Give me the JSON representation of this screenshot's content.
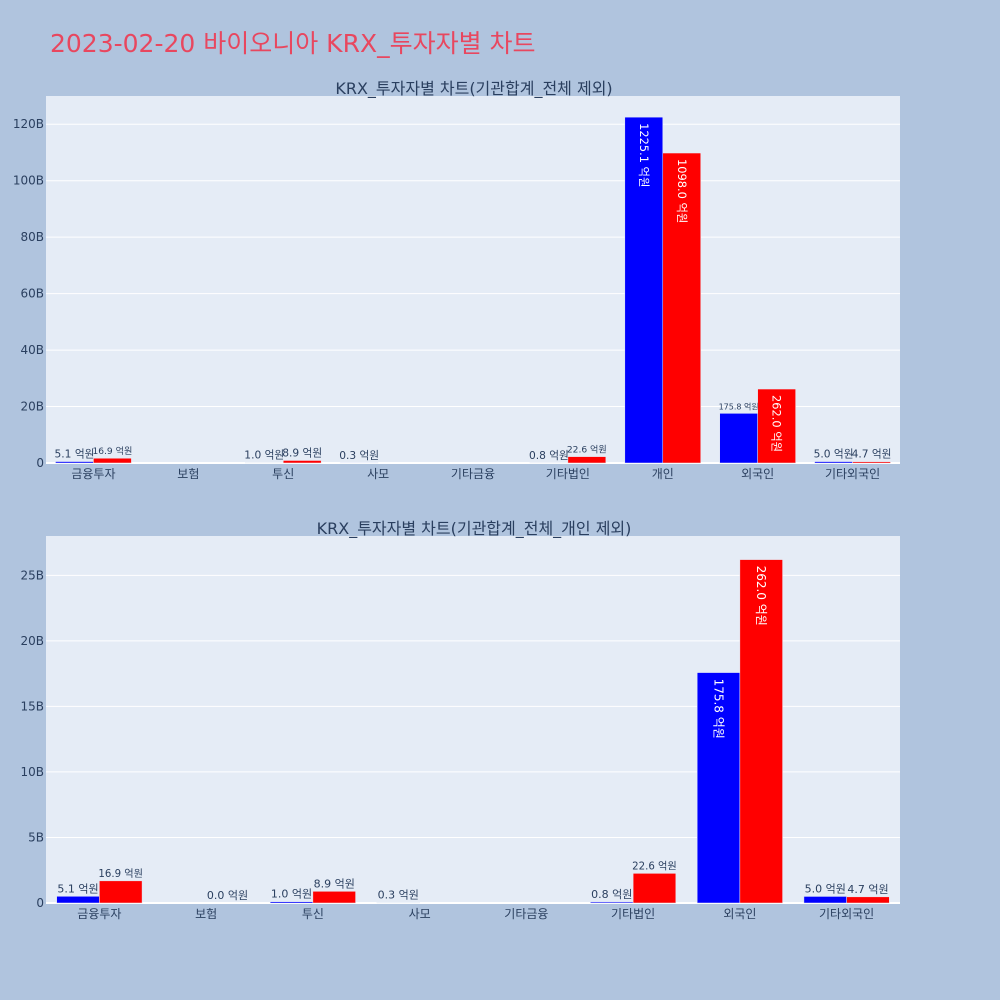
{
  "page": {
    "title": "2023-02-20 바이오니아 KRX_투자자별 차트"
  },
  "colors": {
    "background": "#b0c4de",
    "plot_bg": "#e5ecf6",
    "title": "#e8475f",
    "text": "#2a3f5f",
    "buy": "#0000ff",
    "sell": "#ff0000"
  },
  "chart_data": [
    {
      "type": "bar",
      "title": "KRX_투자자별 차트(기관합계_전체 제외)",
      "categories": [
        "금융투자",
        "보험",
        "투신",
        "사모",
        "기타금융",
        "기타법인",
        "개인",
        "외국인",
        "기타외국인"
      ],
      "series": [
        {
          "color": "#0000ff",
          "values": [
            510000000,
            0,
            100000000,
            30000000,
            0,
            80000000,
            122510000000,
            17580000000,
            500000000
          ],
          "labels": [
            "5.1 억원",
            "",
            "1.0 억원",
            "0.3 억원",
            "",
            "0.8 억원",
            "1225.1 억원",
            "175.8 억원",
            "5.0 억원"
          ]
        },
        {
          "color": "#ff0000",
          "values": [
            1690000000,
            0,
            890000000,
            0,
            0,
            2260000000,
            109800000000,
            26200000000,
            470000000
          ],
          "labels": [
            "16.9 억원",
            "",
            "8.9 억원",
            "",
            "",
            "22.6 억원",
            "1098.0 억원",
            "262.0 억원",
            "4.7 억원"
          ]
        }
      ],
      "ylim": [
        0,
        130000000000
      ],
      "yticks": [
        0,
        20000000000,
        40000000000,
        60000000000,
        80000000000,
        100000000000,
        120000000000
      ],
      "ytick_labels": [
        "0",
        "20B",
        "40B",
        "60B",
        "80B",
        "100B",
        "120B"
      ],
      "grid": true
    },
    {
      "type": "bar",
      "title": "KRX_투자자별 차트(기관합계_전체_개인 제외)",
      "categories": [
        "금융투자",
        "보험",
        "투신",
        "사모",
        "기타금융",
        "기타법인",
        "외국인",
        "기타외국인"
      ],
      "series": [
        {
          "color": "#0000ff",
          "values": [
            510000000,
            0,
            100000000,
            30000000,
            0,
            80000000,
            17580000000,
            500000000
          ],
          "labels": [
            "5.1 억원",
            "",
            "1.0 억원",
            "0.3 억원",
            "",
            "0.8 억원",
            "175.8 억원",
            "5.0 억원"
          ]
        },
        {
          "color": "#ff0000",
          "values": [
            1690000000,
            0,
            890000000,
            0,
            0,
            2260000000,
            26200000000,
            470000000
          ],
          "labels": [
            "16.9 억원",
            "0.0 억원",
            "8.9 억원",
            "",
            "",
            "22.6 억원",
            "262.0 억원",
            "4.7 억원"
          ]
        }
      ],
      "ylim": [
        0,
        28000000000
      ],
      "yticks": [
        0,
        5000000000,
        10000000000,
        15000000000,
        20000000000,
        25000000000
      ],
      "ytick_labels": [
        "0",
        "5B",
        "10B",
        "15B",
        "20B",
        "25B"
      ],
      "grid": true
    }
  ]
}
